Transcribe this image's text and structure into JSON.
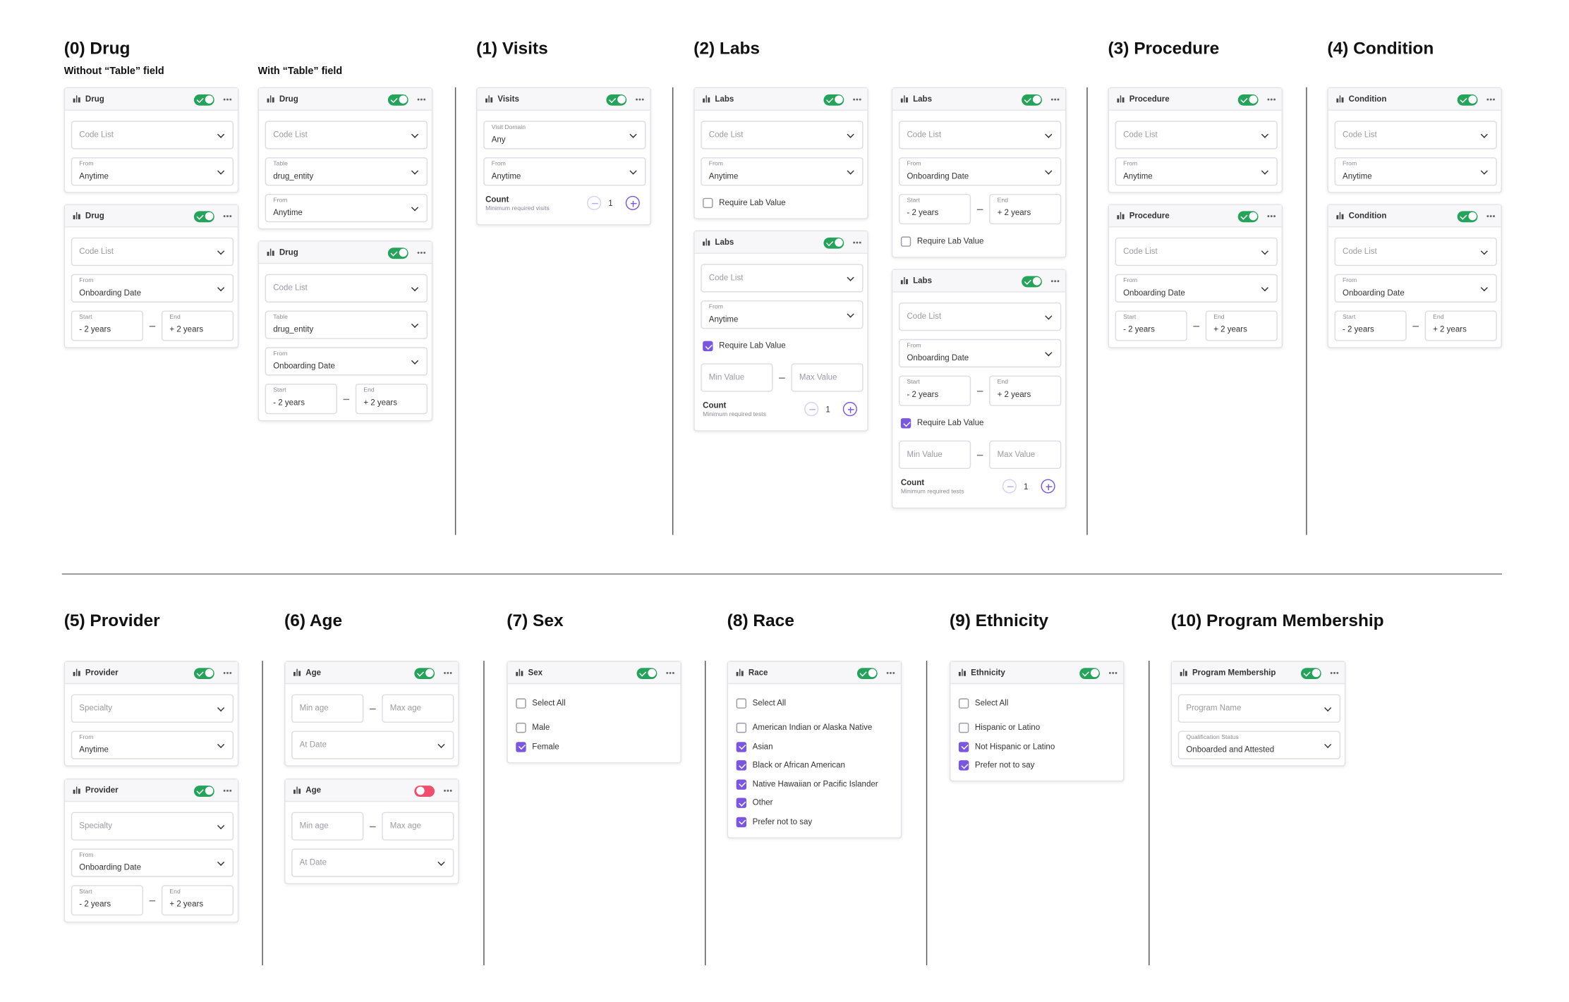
{
  "sections": [
    {
      "title": "(0) Drug",
      "columns": [
        {
          "caption": "Without “Table” field",
          "cards": [
            {
              "title": "Drug",
              "enabled": true,
              "rows": [
                {
                  "kind": "select",
                  "placeholder": "Code List"
                },
                {
                  "kind": "select",
                  "label": "From",
                  "value": "Anytime"
                }
              ]
            },
            {
              "title": "Drug",
              "enabled": true,
              "rows": [
                {
                  "kind": "select",
                  "placeholder": "Code List"
                },
                {
                  "kind": "select",
                  "label": "From",
                  "value": "Onboarding Date"
                },
                {
                  "kind": "range",
                  "start": {
                    "label": "Start",
                    "value": "- 2 years"
                  },
                  "end": {
                    "label": "End",
                    "value": "+ 2 years"
                  }
                }
              ]
            }
          ]
        },
        {
          "caption": "With “Table” field",
          "cards": [
            {
              "title": "Drug",
              "enabled": true,
              "rows": [
                {
                  "kind": "select",
                  "placeholder": "Code List"
                },
                {
                  "kind": "select",
                  "label": "Table",
                  "value": "drug_entity"
                },
                {
                  "kind": "select",
                  "label": "From",
                  "value": "Anytime"
                }
              ]
            },
            {
              "title": "Drug",
              "enabled": true,
              "rows": [
                {
                  "kind": "select",
                  "placeholder": "Code List"
                },
                {
                  "kind": "select",
                  "label": "Table",
                  "value": "drug_entity"
                },
                {
                  "kind": "select",
                  "label": "From",
                  "value": "Onboarding Date"
                },
                {
                  "kind": "range",
                  "start": {
                    "label": "Start",
                    "value": "- 2 years"
                  },
                  "end": {
                    "label": "End",
                    "value": "+ 2 years"
                  }
                }
              ]
            }
          ]
        }
      ]
    },
    {
      "title": "(1) Visits",
      "columns": [
        {
          "cards": [
            {
              "title": "Visits",
              "enabled": true,
              "rows": [
                {
                  "kind": "select",
                  "label": "Visit Domain",
                  "value": "Any"
                },
                {
                  "kind": "select",
                  "label": "From",
                  "value": "Anytime"
                },
                {
                  "kind": "count",
                  "label": "Count",
                  "hint": "Minimum required visits",
                  "value": 1
                }
              ]
            }
          ]
        }
      ]
    },
    {
      "title": "(2) Labs",
      "columns": [
        {
          "cards": [
            {
              "title": "Labs",
              "enabled": true,
              "rows": [
                {
                  "kind": "select",
                  "placeholder": "Code List"
                },
                {
                  "kind": "select",
                  "label": "From",
                  "value": "Anytime"
                },
                {
                  "kind": "check",
                  "text": "Require Lab Value",
                  "checked": false
                }
              ]
            },
            {
              "title": "Labs",
              "enabled": true,
              "rows": [
                {
                  "kind": "select",
                  "placeholder": "Code List"
                },
                {
                  "kind": "select",
                  "label": "From",
                  "value": "Anytime"
                },
                {
                  "kind": "check",
                  "text": "Require Lab Value",
                  "checked": true
                },
                {
                  "kind": "range",
                  "start": {
                    "placeholder": "Min Value"
                  },
                  "end": {
                    "placeholder": "Max Value"
                  }
                },
                {
                  "kind": "count",
                  "label": "Count",
                  "hint": "Minimum required tests",
                  "value": 1
                }
              ]
            }
          ]
        },
        {
          "cards": [
            {
              "title": "Labs",
              "enabled": true,
              "rows": [
                {
                  "kind": "select",
                  "placeholder": "Code List"
                },
                {
                  "kind": "select",
                  "label": "From",
                  "value": "Onboarding Date"
                },
                {
                  "kind": "range",
                  "start": {
                    "label": "Start",
                    "value": "- 2 years"
                  },
                  "end": {
                    "label": "End",
                    "value": "+ 2 years"
                  }
                },
                {
                  "kind": "check",
                  "text": "Require Lab Value",
                  "checked": false
                }
              ]
            },
            {
              "title": "Labs",
              "enabled": true,
              "rows": [
                {
                  "kind": "select",
                  "placeholder": "Code List"
                },
                {
                  "kind": "select",
                  "label": "From",
                  "value": "Onboarding Date"
                },
                {
                  "kind": "range",
                  "start": {
                    "label": "Start",
                    "value": "- 2 years"
                  },
                  "end": {
                    "label": "End",
                    "value": "+ 2 years"
                  }
                },
                {
                  "kind": "check",
                  "text": "Require Lab Value",
                  "checked": true
                },
                {
                  "kind": "range",
                  "start": {
                    "placeholder": "Min Value"
                  },
                  "end": {
                    "placeholder": "Max Value"
                  }
                },
                {
                  "kind": "count",
                  "label": "Count",
                  "hint": "Minimum required tests",
                  "value": 1
                }
              ]
            }
          ]
        }
      ]
    },
    {
      "title": "(3) Procedure",
      "columns": [
        {
          "cards": [
            {
              "title": "Procedure",
              "enabled": true,
              "rows": [
                {
                  "kind": "select",
                  "placeholder": "Code List"
                },
                {
                  "kind": "select",
                  "label": "From",
                  "value": "Anytime"
                }
              ]
            },
            {
              "title": "Procedure",
              "enabled": true,
              "rows": [
                {
                  "kind": "select",
                  "placeholder": "Code List"
                },
                {
                  "kind": "select",
                  "label": "From",
                  "value": "Onboarding Date"
                },
                {
                  "kind": "range",
                  "start": {
                    "label": "Start",
                    "value": "- 2 years"
                  },
                  "end": {
                    "label": "End",
                    "value": "+ 2 years"
                  }
                }
              ]
            }
          ]
        }
      ]
    },
    {
      "title": "(4) Condition",
      "columns": [
        {
          "cards": [
            {
              "title": "Condition",
              "enabled": true,
              "rows": [
                {
                  "kind": "select",
                  "placeholder": "Code List"
                },
                {
                  "kind": "select",
                  "label": "From",
                  "value": "Anytime"
                }
              ]
            },
            {
              "title": "Condition",
              "enabled": true,
              "rows": [
                {
                  "kind": "select",
                  "placeholder": "Code List"
                },
                {
                  "kind": "select",
                  "label": "From",
                  "value": "Onboarding Date"
                },
                {
                  "kind": "range",
                  "start": {
                    "label": "Start",
                    "value": "- 2 years"
                  },
                  "end": {
                    "label": "End",
                    "value": "+ 2 years"
                  }
                }
              ]
            }
          ]
        }
      ]
    },
    {
      "title": "(5) Provider",
      "columns": [
        {
          "cards": [
            {
              "title": "Provider",
              "enabled": true,
              "rows": [
                {
                  "kind": "select",
                  "placeholder": "Specialty"
                },
                {
                  "kind": "select",
                  "label": "From",
                  "value": "Anytime"
                }
              ]
            },
            {
              "title": "Provider",
              "enabled": true,
              "rows": [
                {
                  "kind": "select",
                  "placeholder": "Specialty"
                },
                {
                  "kind": "select",
                  "label": "From",
                  "value": "Onboarding Date"
                },
                {
                  "kind": "range",
                  "start": {
                    "label": "Start",
                    "value": "- 2 years"
                  },
                  "end": {
                    "label": "End",
                    "value": "+ 2 years"
                  }
                }
              ]
            }
          ]
        }
      ]
    },
    {
      "title": "(6) Age",
      "columns": [
        {
          "cards": [
            {
              "title": "Age",
              "enabled": true,
              "rows": [
                {
                  "kind": "range",
                  "start": {
                    "placeholder": "Min age"
                  },
                  "end": {
                    "placeholder": "Max age"
                  }
                },
                {
                  "kind": "select",
                  "placeholder": "At Date"
                }
              ]
            },
            {
              "title": "Age",
              "enabled": false,
              "rows": [
                {
                  "kind": "range",
                  "start": {
                    "placeholder": "Min age"
                  },
                  "end": {
                    "placeholder": "Max age"
                  }
                },
                {
                  "kind": "select",
                  "placeholder": "At Date"
                }
              ]
            }
          ]
        }
      ]
    },
    {
      "title": "(7) Sex",
      "columns": [
        {
          "cards": [
            {
              "title": "Sex",
              "enabled": true,
              "rows": [
                {
                  "kind": "selectall",
                  "text": "Select All",
                  "checked": false
                },
                {
                  "kind": "check",
                  "text": "Male",
                  "checked": false
                },
                {
                  "kind": "check",
                  "text": "Female",
                  "checked": true
                }
              ]
            }
          ]
        }
      ]
    },
    {
      "title": "(8) Race",
      "columns": [
        {
          "cards": [
            {
              "title": "Race",
              "enabled": true,
              "rows": [
                {
                  "kind": "selectall",
                  "text": "Select All",
                  "checked": false
                },
                {
                  "kind": "check",
                  "text": "American Indian or Alaska Native",
                  "checked": false
                },
                {
                  "kind": "check",
                  "text": "Asian",
                  "checked": true
                },
                {
                  "kind": "check",
                  "text": "Black or African American",
                  "checked": true
                },
                {
                  "kind": "check",
                  "text": "Native Hawaiian or Pacific Islander",
                  "checked": true
                },
                {
                  "kind": "check",
                  "text": "Other",
                  "checked": true
                },
                {
                  "kind": "check",
                  "text": "Prefer not to say",
                  "checked": true
                }
              ]
            }
          ]
        }
      ]
    },
    {
      "title": "(9) Ethnicity",
      "columns": [
        {
          "cards": [
            {
              "title": "Ethnicity",
              "enabled": true,
              "rows": [
                {
                  "kind": "selectall",
                  "text": "Select All",
                  "checked": false
                },
                {
                  "kind": "check",
                  "text": "Hispanic or Latino",
                  "checked": false
                },
                {
                  "kind": "check",
                  "text": "Not Hispanic or Latino",
                  "checked": true
                },
                {
                  "kind": "check",
                  "text": "Prefer not to say",
                  "checked": true
                }
              ]
            }
          ]
        }
      ]
    },
    {
      "title": "(10) Program Membership",
      "columns": [
        {
          "cards": [
            {
              "title": "Program Membership",
              "enabled": true,
              "rows": [
                {
                  "kind": "select",
                  "placeholder": "Program Name"
                },
                {
                  "kind": "select",
                  "label": "Qualification Status",
                  "value": "Onboarded and Attested"
                }
              ]
            }
          ]
        }
      ]
    }
  ]
}
